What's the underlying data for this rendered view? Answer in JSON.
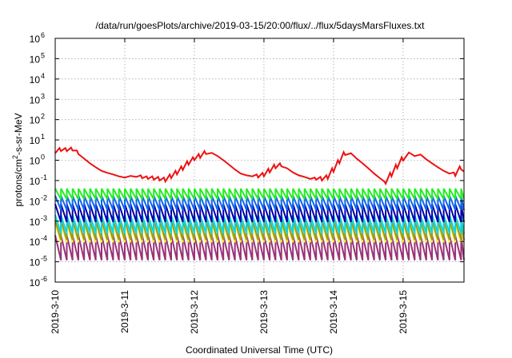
{
  "chart_data": {
    "type": "line",
    "title": "/data/run/goesPlots/archive/2019-03-15/20:00/flux/../flux/5daysMarsFluxes.txt",
    "xlabel": "Coordinated Universal Time (UTC)",
    "ylabel_parts": [
      "protons/cm",
      "2",
      "-s-sr-MeV"
    ],
    "y_scale": "log",
    "ylim": [
      1e-06,
      1000000.0
    ],
    "y_ticks": [
      {
        "value": 1e-06,
        "base": "10",
        "exp": "-6"
      },
      {
        "value": 1e-05,
        "base": "10",
        "exp": "-5"
      },
      {
        "value": 0.0001,
        "base": "10",
        "exp": "-4"
      },
      {
        "value": 0.001,
        "base": "10",
        "exp": "-3"
      },
      {
        "value": 0.01,
        "base": "10",
        "exp": "-2"
      },
      {
        "value": 0.1,
        "base": "10",
        "exp": "-1"
      },
      {
        "value": 1,
        "base": "10",
        "exp": "0"
      },
      {
        "value": 10.0,
        "base": "10",
        "exp": "1"
      },
      {
        "value": 100.0,
        "base": "10",
        "exp": "2"
      },
      {
        "value": 1000.0,
        "base": "10",
        "exp": "3"
      },
      {
        "value": 10000.0,
        "base": "10",
        "exp": "4"
      },
      {
        "value": 100000.0,
        "base": "10",
        "exp": "5"
      },
      {
        "value": 1000000.0,
        "base": "10",
        "exp": "6"
      }
    ],
    "xlim": [
      "2019-03-10T00:00",
      "2019-03-15T21:00"
    ],
    "x_ticks": [
      "2019-3-10",
      "2019-3-11",
      "2019-3-12",
      "2019-3-13",
      "2019-3-14",
      "2019-3-15"
    ],
    "grid": true,
    "legend": "none",
    "series": [
      {
        "color": "#ee1111",
        "x": [
          "2019-03-10T00:00",
          "2019-03-10T01:30",
          "2019-03-10T02:00",
          "2019-03-10T03:30",
          "2019-03-10T04:00",
          "2019-03-10T05:30",
          "2019-03-10T06:00",
          "2019-03-10T07:30",
          "2019-03-10T08:00",
          "2019-03-10T10:00",
          "2019-03-10T12:00",
          "2019-03-10T14:00",
          "2019-03-10T16:00",
          "2019-03-10T18:00",
          "2019-03-10T20:00",
          "2019-03-10T22:00",
          "2019-03-11T00:00",
          "2019-03-11T02:00",
          "2019-03-11T04:00",
          "2019-03-11T05:30",
          "2019-03-11T06:00",
          "2019-03-11T07:30",
          "2019-03-11T08:00",
          "2019-03-11T09:30",
          "2019-03-11T10:00",
          "2019-03-11T11:30",
          "2019-03-11T12:00",
          "2019-03-11T13:30",
          "2019-03-11T14:00",
          "2019-03-11T15:30",
          "2019-03-11T16:00",
          "2019-03-11T17:30",
          "2019-03-11T18:00",
          "2019-03-11T19:30",
          "2019-03-11T20:00",
          "2019-03-11T21:30",
          "2019-03-11T22:00",
          "2019-03-11T23:30",
          "2019-03-12T00:00",
          "2019-03-12T01:30",
          "2019-03-12T02:00",
          "2019-03-12T03:30",
          "2019-03-12T04:00",
          "2019-03-12T06:00",
          "2019-03-12T08:00",
          "2019-03-12T10:00",
          "2019-03-12T12:00",
          "2019-03-12T14:00",
          "2019-03-12T16:00",
          "2019-03-12T18:00",
          "2019-03-12T20:00",
          "2019-03-12T21:30",
          "2019-03-12T22:00",
          "2019-03-12T23:30",
          "2019-03-13T00:00",
          "2019-03-13T01:30",
          "2019-03-13T02:00",
          "2019-03-13T03:30",
          "2019-03-13T04:00",
          "2019-03-13T05:30",
          "2019-03-13T06:00",
          "2019-03-13T08:00",
          "2019-03-13T10:00",
          "2019-03-13T12:00",
          "2019-03-13T14:00",
          "2019-03-13T16:00",
          "2019-03-13T17:30",
          "2019-03-13T18:00",
          "2019-03-13T19:30",
          "2019-03-13T20:00",
          "2019-03-13T21:30",
          "2019-03-13T22:00",
          "2019-03-13T23:30",
          "2019-03-14T00:00",
          "2019-03-14T01:30",
          "2019-03-14T02:00",
          "2019-03-14T03:30",
          "2019-03-14T04:00",
          "2019-03-14T06:00",
          "2019-03-14T08:00",
          "2019-03-14T10:00",
          "2019-03-14T12:00",
          "2019-03-14T14:00",
          "2019-03-14T16:00",
          "2019-03-14T17:30",
          "2019-03-14T18:00",
          "2019-03-14T19:30",
          "2019-03-14T20:00",
          "2019-03-14T21:30",
          "2019-03-14T22:00",
          "2019-03-14T23:30",
          "2019-03-15T00:00",
          "2019-03-15T02:00",
          "2019-03-15T04:00",
          "2019-03-15T06:00",
          "2019-03-15T08:00",
          "2019-03-15T10:00",
          "2019-03-15T12:00",
          "2019-03-15T14:00",
          "2019-03-15T16:00",
          "2019-03-15T17:30",
          "2019-03-15T18:00",
          "2019-03-15T19:30",
          "2019-03-15T20:00",
          "2019-03-15T21:00"
        ],
        "y": [
          2.2,
          4.0,
          2.8,
          4.0,
          2.8,
          4.2,
          3.0,
          3.0,
          2.0,
          1.2,
          0.7,
          0.45,
          0.3,
          0.24,
          0.2,
          0.16,
          0.14,
          0.17,
          0.15,
          0.18,
          0.13,
          0.16,
          0.12,
          0.16,
          0.11,
          0.15,
          0.1,
          0.14,
          0.09,
          0.2,
          0.13,
          0.3,
          0.2,
          0.5,
          0.33,
          0.9,
          0.6,
          1.4,
          1.0,
          2.0,
          1.3,
          2.8,
          2.0,
          2.3,
          1.6,
          1.0,
          0.6,
          0.35,
          0.22,
          0.18,
          0.16,
          0.2,
          0.14,
          0.24,
          0.16,
          0.38,
          0.25,
          0.6,
          0.4,
          0.7,
          0.5,
          0.4,
          0.25,
          0.18,
          0.15,
          0.12,
          0.14,
          0.11,
          0.15,
          0.1,
          0.18,
          0.12,
          0.4,
          0.27,
          1.0,
          0.7,
          2.5,
          1.8,
          2.2,
          1.2,
          0.7,
          0.4,
          0.22,
          0.13,
          0.09,
          0.07,
          0.24,
          0.16,
          0.6,
          0.4,
          1.4,
          0.95,
          2.4,
          1.6,
          1.9,
          1.1,
          0.7,
          0.45,
          0.3,
          0.22,
          0.25,
          0.17,
          0.5,
          0.35,
          0.28
        ]
      }
    ],
    "sawtooth_series": [
      {
        "color": "#22ee22",
        "high": 0.04,
        "low": 0.012
      },
      {
        "color": "#1166ee",
        "high": 0.018,
        "low": 0.0035
      },
      {
        "color": "#0000aa",
        "high": 0.007,
        "low": 0.0009
      },
      {
        "color": "#00d8e8",
        "high": 0.002,
        "low": 0.00025
      },
      {
        "color": "#9a9a22",
        "high": 0.0011,
        "low": 0.00012
      },
      {
        "color": "#f4f430",
        "high": 0.0008,
        "low": 9e-05
      },
      {
        "color": "#993377",
        "high": 0.0002,
        "low": 1.2e-05
      }
    ],
    "sawtooth_period_hours": 2,
    "sawtooth_start": "2019-03-10T00:00",
    "sawtooth_end": "2019-03-15T21:00"
  }
}
